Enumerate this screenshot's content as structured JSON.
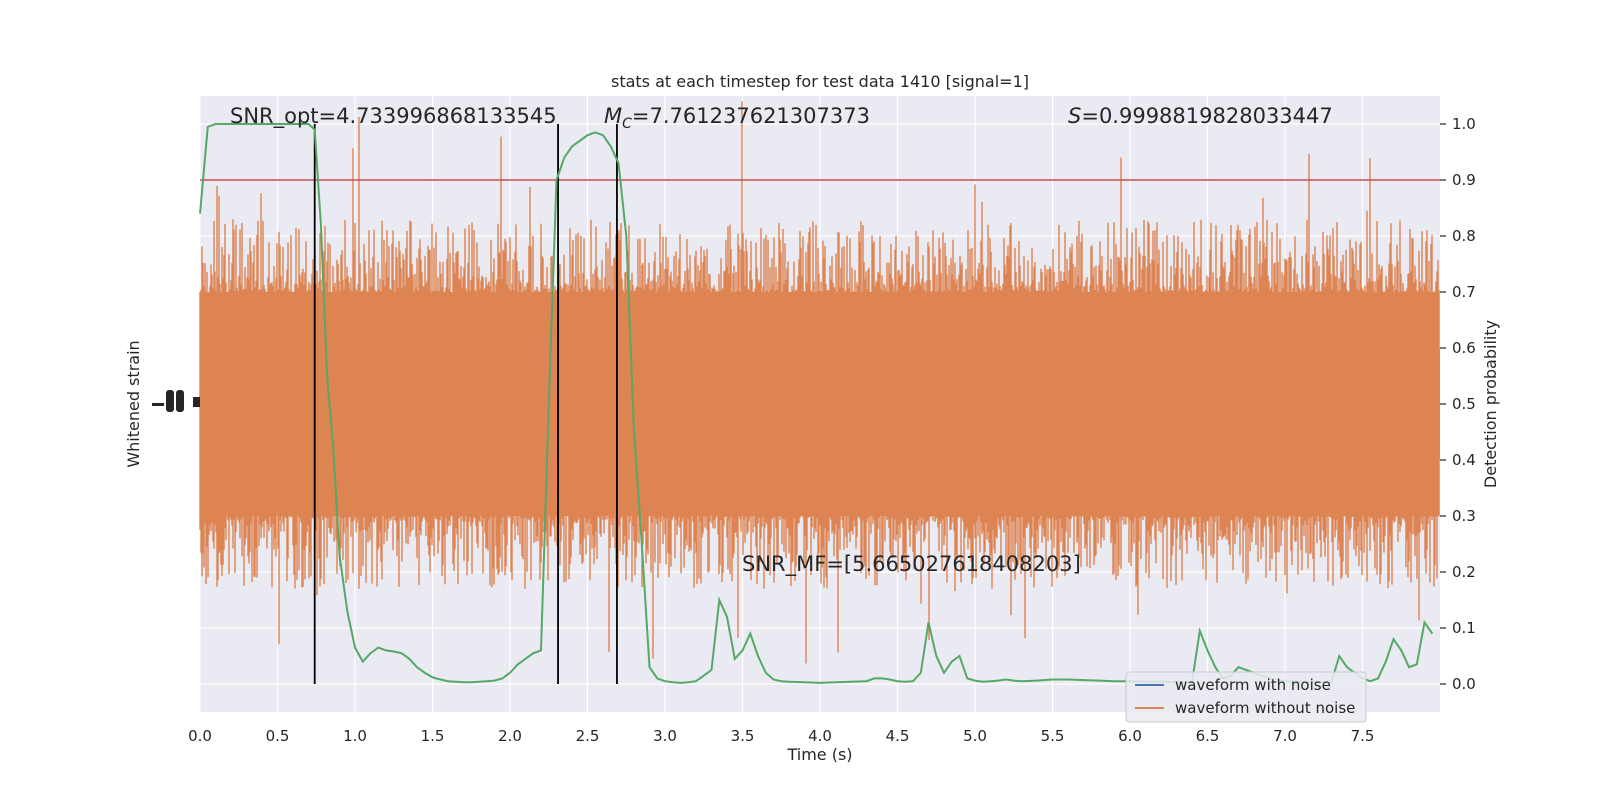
{
  "chart_data": {
    "type": "line",
    "title": "stats at each timestep for test data 1410 [signal=1]",
    "xlabel": "Time (s)",
    "ylabel_left": "Whitened strain",
    "ylabel_right": "Detection probability",
    "xlim": [
      0,
      8
    ],
    "ylim_right": [
      -0.05,
      1.05
    ],
    "x_ticks": [
      "0.0",
      "0.5",
      "1.0",
      "1.5",
      "2.0",
      "2.5",
      "3.0",
      "3.5",
      "4.0",
      "4.5",
      "5.0",
      "5.5",
      "6.0",
      "6.5",
      "7.0",
      "7.5"
    ],
    "y_ticks_right": [
      "0.0",
      "0.1",
      "0.2",
      "0.3",
      "0.4",
      "0.5",
      "0.6",
      "0.7",
      "0.8",
      "0.9",
      "1.0"
    ],
    "threshold": 0.9,
    "vlines": [
      0.74,
      2.31,
      2.69
    ],
    "annotations": {
      "snr_opt": "SNR_opt=4.733996868133545",
      "mc_symbol": "M",
      "mc_sub": "C",
      "mc_value": "=7.761237621307373",
      "s_symbol": "S",
      "s_value": "=0.9998819828033447",
      "snr_mf": "SNR_MF=[5.665027618408203]"
    },
    "legend": {
      "placement": "lower-right",
      "entries": [
        {
          "label": "waveform with noise",
          "color": "#4c72b0"
        },
        {
          "label": "waveform without noise",
          "color": "#dd8452"
        }
      ]
    },
    "colors": {
      "background": "#eaeaf2",
      "grid": "#ffffff",
      "strain": "#dd8452",
      "probability": "#55a868",
      "threshold": "#c44e52",
      "vline": "#000000"
    },
    "series": [
      {
        "x": [
          0.0,
          0.05,
          0.1,
          0.15,
          0.2,
          0.25,
          0.3,
          0.35,
          0.4,
          0.45,
          0.5,
          0.55,
          0.6,
          0.65,
          0.7,
          0.74,
          0.78,
          0.82,
          0.86,
          0.9,
          0.95,
          1.0,
          1.05,
          1.1,
          1.15,
          1.2,
          1.25,
          1.3,
          1.35,
          1.4,
          1.45,
          1.5,
          1.55,
          1.6,
          1.65,
          1.7,
          1.75,
          1.8,
          1.85,
          1.9,
          1.95,
          2.0,
          2.05,
          2.1,
          2.15,
          2.2,
          2.25,
          2.3,
          2.35,
          2.4,
          2.45,
          2.5,
          2.55,
          2.6,
          2.65,
          2.7,
          2.75,
          2.8,
          2.85,
          2.9,
          2.95,
          3.0,
          3.05,
          3.1,
          3.15,
          3.2,
          3.25,
          3.3,
          3.35,
          3.4,
          3.45,
          3.5,
          3.55,
          3.6,
          3.65,
          3.7,
          3.75,
          3.8,
          3.9,
          4.0,
          4.1,
          4.2,
          4.3,
          4.35,
          4.4,
          4.45,
          4.5,
          4.55,
          4.6,
          4.65,
          4.7,
          4.75,
          4.8,
          4.85,
          4.9,
          4.95,
          5.0,
          5.05,
          5.1,
          5.15,
          5.2,
          5.25,
          5.3,
          5.4,
          5.5,
          5.6,
          5.7,
          5.8,
          5.9,
          6.0,
          6.1,
          6.2,
          6.3,
          6.35,
          6.4,
          6.45,
          6.5,
          6.55,
          6.6,
          6.65,
          6.7,
          6.8,
          6.9,
          7.0,
          7.1,
          7.2,
          7.3,
          7.35,
          7.4,
          7.45,
          7.5,
          7.55,
          7.6,
          7.65,
          7.7,
          7.75,
          7.8,
          7.85,
          7.9,
          7.95
        ],
        "values": [
          0.84,
          0.995,
          1.0,
          1.0,
          1.0,
          1.0,
          1.0,
          1.0,
          1.0,
          1.0,
          1.0,
          1.0,
          1.0,
          1.0,
          1.0,
          0.99,
          0.82,
          0.55,
          0.42,
          0.23,
          0.13,
          0.065,
          0.04,
          0.055,
          0.065,
          0.06,
          0.058,
          0.055,
          0.045,
          0.03,
          0.02,
          0.012,
          0.008,
          0.005,
          0.004,
          0.003,
          0.003,
          0.004,
          0.005,
          0.006,
          0.01,
          0.02,
          0.035,
          0.045,
          0.055,
          0.06,
          0.5,
          0.9,
          0.94,
          0.96,
          0.97,
          0.98,
          0.985,
          0.98,
          0.96,
          0.93,
          0.8,
          0.45,
          0.25,
          0.03,
          0.01,
          0.005,
          0.003,
          0.002,
          0.003,
          0.005,
          0.015,
          0.025,
          0.15,
          0.12,
          0.045,
          0.06,
          0.09,
          0.05,
          0.02,
          0.008,
          0.005,
          0.004,
          0.003,
          0.002,
          0.003,
          0.004,
          0.005,
          0.01,
          0.01,
          0.008,
          0.005,
          0.004,
          0.005,
          0.02,
          0.11,
          0.05,
          0.02,
          0.04,
          0.05,
          0.01,
          0.006,
          0.004,
          0.005,
          0.006,
          0.008,
          0.006,
          0.005,
          0.006,
          0.008,
          0.008,
          0.007,
          0.006,
          0.005,
          0.005,
          0.004,
          0.004,
          0.003,
          0.003,
          0.003,
          0.095,
          0.06,
          0.03,
          0.01,
          0.015,
          0.03,
          0.02,
          0.01,
          0.005,
          0.004,
          0.003,
          0.004,
          0.05,
          0.03,
          0.02,
          0.01,
          0.005,
          0.01,
          0.04,
          0.08,
          0.06,
          0.03,
          0.035,
          0.11,
          0.09
        ]
      }
    ]
  }
}
